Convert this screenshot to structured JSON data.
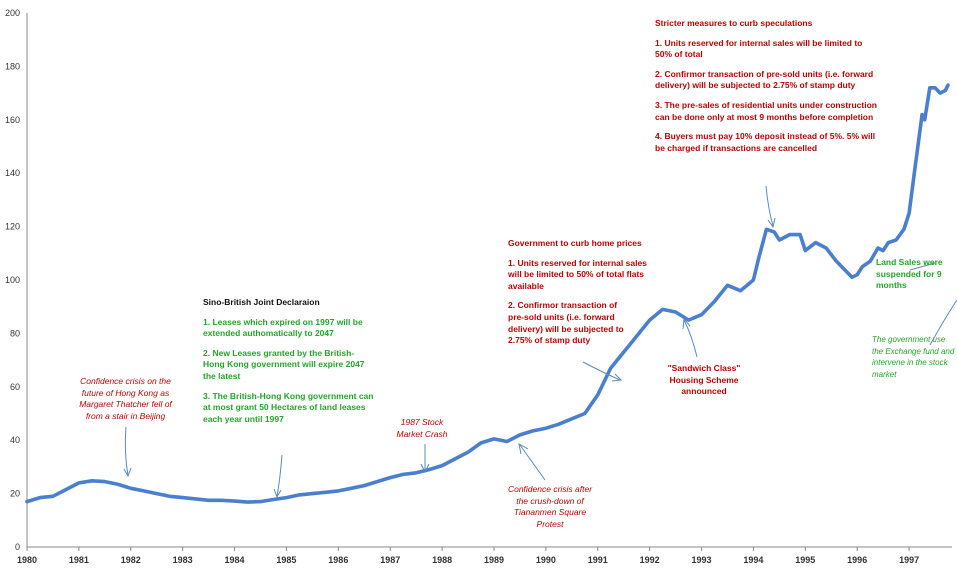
{
  "chart_data": {
    "type": "line",
    "title": "",
    "xlabel": "",
    "ylabel": "",
    "xlim": [
      1980,
      1997.75
    ],
    "ylim": [
      0,
      200
    ],
    "x_ticks": [
      "1980",
      "1981",
      "1982",
      "1983",
      "1984",
      "1985",
      "1986",
      "1987",
      "1988",
      "1989",
      "1990",
      "1991",
      "1992",
      "1993",
      "1994",
      "1995",
      "1996",
      "1997"
    ],
    "y_ticks": [
      "0",
      "20",
      "40",
      "60",
      "80",
      "100",
      "120",
      "140",
      "160",
      "180",
      "200"
    ],
    "grid": false,
    "color": "#4a7fd0",
    "series": [
      {
        "x": [
          1980.0,
          1980.25,
          1980.5,
          1980.75,
          1981.0,
          1981.25,
          1981.5,
          1981.75,
          1982.0,
          1982.25,
          1982.5,
          1982.75,
          1983.0,
          1983.25,
          1983.5,
          1983.75,
          1984.0,
          1984.25,
          1984.5,
          1984.75,
          1985.0,
          1985.25,
          1985.5,
          1985.75,
          1986.0,
          1986.25,
          1986.5,
          1986.75,
          1987.0,
          1987.25,
          1987.5,
          1987.75,
          1988.0,
          1988.25,
          1988.5,
          1988.75,
          1989.0,
          1989.25,
          1989.5,
          1989.75,
          1990.0,
          1990.25,
          1990.5,
          1990.75,
          1991.0,
          1991.25,
          1991.5,
          1991.75,
          1992.0,
          1992.25,
          1992.5,
          1992.75,
          1993.0,
          1993.25,
          1993.5,
          1993.75,
          1994.0,
          1994.1,
          1994.25,
          1994.4,
          1994.5,
          1994.7,
          1994.9,
          1995.0,
          1995.2,
          1995.4,
          1995.6,
          1995.75,
          1995.9,
          1996.0,
          1996.1,
          1996.25,
          1996.4,
          1996.5,
          1996.6,
          1996.75,
          1996.9,
          1997.0,
          1997.1,
          1997.25,
          1997.3,
          1997.4,
          1997.5,
          1997.6,
          1997.7,
          1997.75
        ],
        "y": [
          17,
          18.5,
          19,
          21.5,
          24,
          24.8,
          24.5,
          23.5,
          22,
          21,
          20,
          19,
          18.5,
          18,
          17.5,
          17.5,
          17.2,
          16.8,
          17,
          17.8,
          18.5,
          19.5,
          20,
          20.5,
          21,
          22,
          23,
          24.5,
          26,
          27.2,
          27.8,
          29,
          30.5,
          33,
          35.5,
          39,
          40.5,
          39.5,
          42,
          43.5,
          44.5,
          46,
          48,
          50,
          57,
          67,
          73,
          79,
          85,
          89,
          88,
          85,
          87,
          92,
          98,
          96,
          100,
          108,
          119,
          118,
          115,
          117,
          117,
          111,
          114,
          112,
          107,
          104,
          101,
          102,
          105,
          107,
          112,
          111,
          114,
          115,
          119,
          125,
          140,
          162,
          160,
          172,
          172,
          170,
          171,
          173
        ]
      }
    ],
    "annotations": {
      "confidence_1982": "Confidence crisis on the future of Hong Kong as Margaret Thatcher fell of from a stair in Beijing",
      "sino_british": {
        "title": "Sino-British Joint Declaraion",
        "items": [
          "1. Leases which expired on 1997 will be extended authomatically to 2047",
          "2. New Leases granted by the British-Hong Kong government will expire 2047 the latest",
          "3. The British-Hong Kong government can at most grant 50 Hectares of land leases each year until 1997"
        ]
      },
      "stock_crash_1987": "1987 Stock Market Crash",
      "tiananmen": "Confidence crisis after the crush-down of Tiananmen Square Protest",
      "gov_curb": {
        "title": "Government to curb home prices",
        "items": [
          "1. Units reserved for internal sales will be limited to 50% of total flats available",
          "2. Confirmor transaction of pre-sold units (i.e. forward delivery) will be subjected to 2.75% of stamp duty"
        ]
      },
      "sandwich_class": "\"Sandwich Class\" Housing Scheme announced",
      "stricter": {
        "title": "Stricter measures to curb speculations",
        "items": [
          "1. Units reserved for internal sales will be limited to 50% of total",
          "2. Confirmor transaction of pre-sold units (i.e. forward delivery) will be subjected to 2.75% of stamp duty",
          "3. The pre-sales of residential units under construction can be done only at most 9 months before completion",
          "4. Buyers must pay 10% deposit instead of 5%. 5% will be charged if transactions are cancelled"
        ]
      },
      "land_sales": "Land Sales were suspended for 9 months",
      "gov_exchange": "The government use the Exchange fund and intervene in the stock market"
    }
  }
}
